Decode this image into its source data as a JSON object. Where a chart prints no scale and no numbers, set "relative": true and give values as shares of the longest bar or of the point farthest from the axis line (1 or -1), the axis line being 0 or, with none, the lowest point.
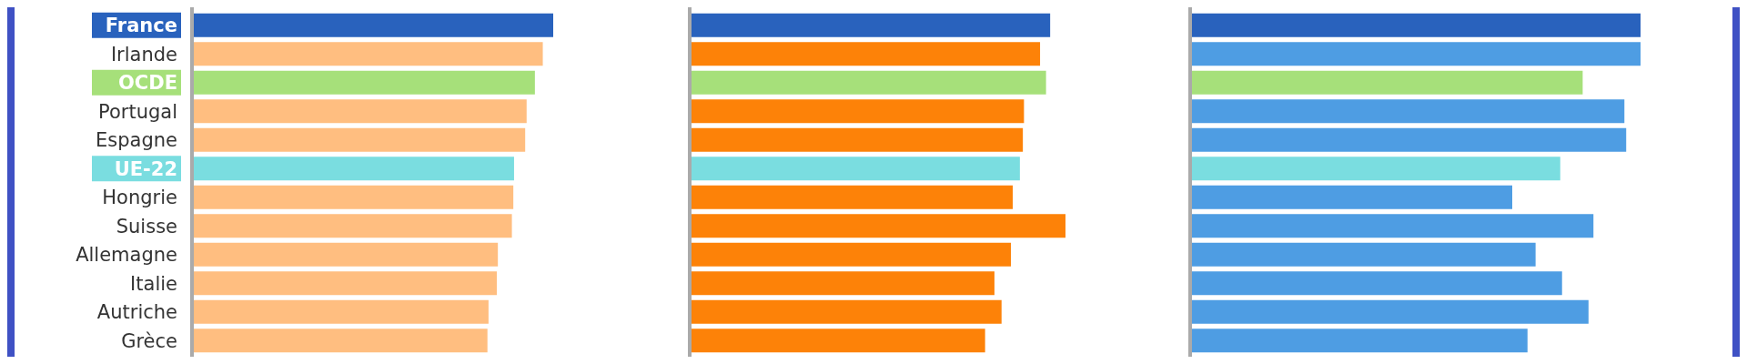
{
  "chart_data": [
    {
      "type": "bar",
      "orientation": "horizontal",
      "relative": true,
      "tick_labels": "y",
      "categories": [
        "France",
        "Irlande",
        "OCDE",
        "Portugal",
        "Espagne",
        "UE-22",
        "Hongrie",
        "Suisse",
        "Allemagne",
        "Italie",
        "Autriche",
        "Grèce"
      ],
      "values": [
        1,
        0.971,
        0.949,
        0.926,
        0.922,
        0.891,
        0.889,
        0.885,
        0.846,
        0.843,
        0.82,
        0.817
      ],
      "colors": [
        "#2962bd",
        "#ffbe80",
        "#a6e07a",
        "#ffbe80",
        "#ffbe80",
        "#7adde0",
        "#ffbe80",
        "#ffbe80",
        "#ffbe80",
        "#ffbe80",
        "#ffbe80",
        "#ffbe80"
      ]
    },
    {
      "type": "bar",
      "orientation": "horizontal",
      "relative": true,
      "tick_labels": false,
      "categories": [
        null,
        null,
        null,
        null,
        null,
        null,
        null,
        null,
        null,
        null,
        null,
        null
      ],
      "values": [
        0.959,
        0.932,
        0.948,
        0.889,
        0.886,
        0.878,
        0.859,
        1,
        0.854,
        0.81,
        0.829,
        0.785
      ],
      "colors": [
        "#2962bd",
        "#fd8208",
        "#a6e07a",
        "#fd8208",
        "#fd8208",
        "#7adde0",
        "#fd8208",
        "#fd8208",
        "#fd8208",
        "#fd8208",
        "#fd8208",
        "#fd8208"
      ]
    },
    {
      "type": "bar",
      "orientation": "horizontal",
      "relative": true,
      "tick_labels": false,
      "categories": [
        null,
        null,
        null,
        null,
        null,
        null,
        null,
        null,
        null,
        null,
        null,
        null
      ],
      "values": [
        1,
        1,
        0.871,
        0.964,
        0.968,
        0.821,
        0.714,
        0.895,
        0.766,
        0.825,
        0.884,
        0.748
      ],
      "colors": [
        "#2962bd",
        "#4e9de3",
        "#a6e07a",
        "#4e9de3",
        "#4e9de3",
        "#7adde0",
        "#4e9de3",
        "#4e9de3",
        "#4e9de3",
        "#4e9de3",
        "#4e9de3",
        "#4e9de3"
      ]
    }
  ]
}
